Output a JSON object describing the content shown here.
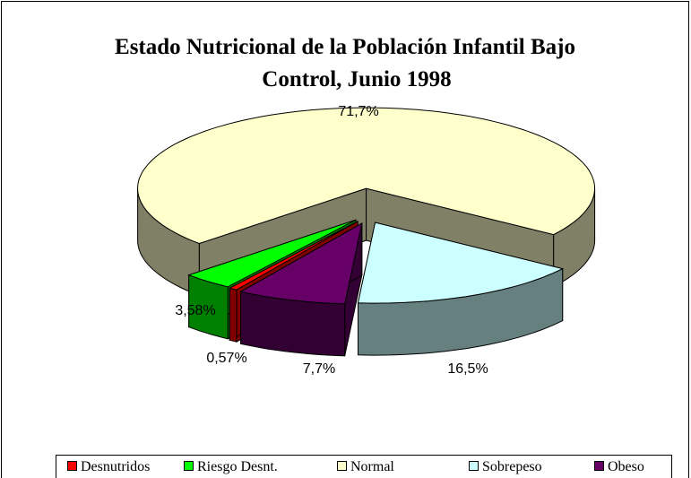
{
  "chart_data": {
    "type": "pie",
    "title": [
      "Estado Nutricional de la Población Infantil Bajo",
      "Control, Junio 1998"
    ],
    "categories": [
      "Desnutridos",
      "Riesgo Desnt.",
      "Normal",
      "Sobrepeso",
      "Obeso"
    ],
    "values": [
      0.57,
      3.58,
      71.7,
      16.5,
      7.7
    ],
    "value_labels": [
      "0,57%",
      "3,58%",
      "71,7%",
      "16,5%",
      "7,7%"
    ],
    "colors": [
      "#ff0000",
      "#00ff00",
      "#ffffcc",
      "#ccffff",
      "#660066"
    ],
    "legend": "bottom"
  }
}
